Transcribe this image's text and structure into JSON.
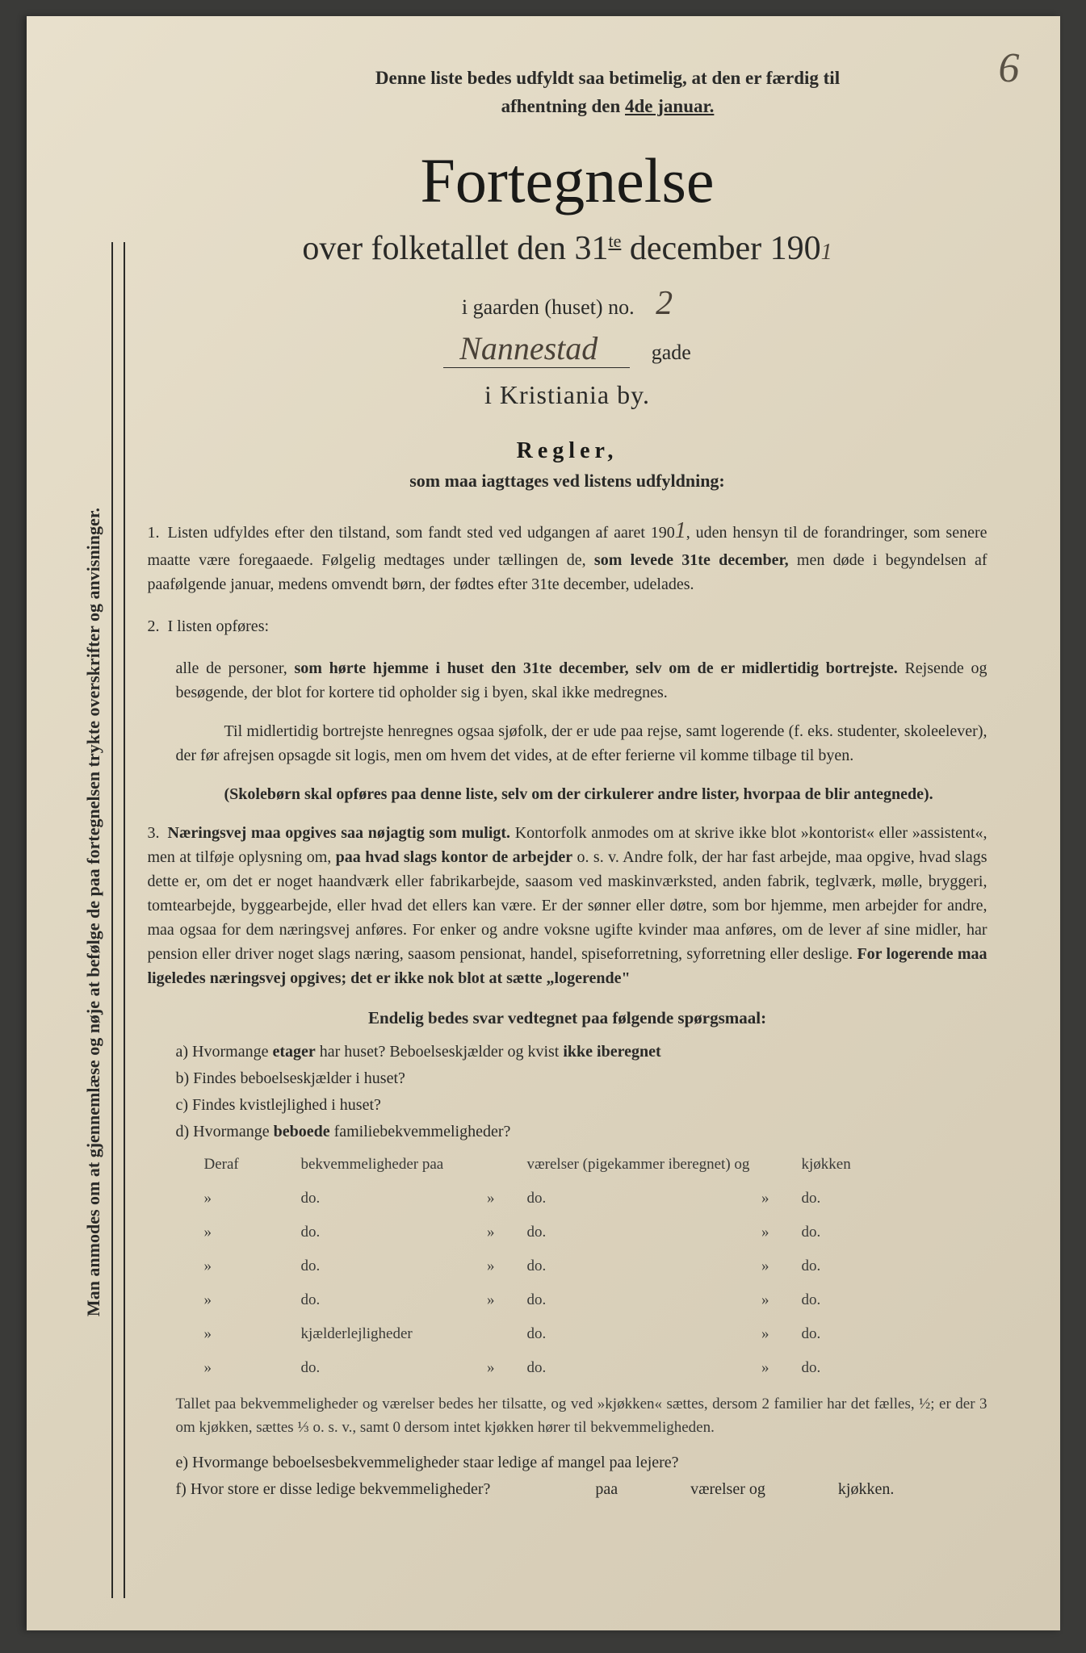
{
  "page_number": "6",
  "vertical_note": "Man anmodes om at gjennemlæse og nøje at befølge de paa fortegnelsen trykte overskrifter og anvisninger.",
  "header_note_line1": "Denne liste bedes udfyldt saa betimelig, at den er færdig til",
  "header_note_line2_prefix": "afhentning den ",
  "header_note_date": "4de januar.",
  "title": "Fortegnelse",
  "subtitle_prefix": "over folketallet den 31",
  "subtitle_sup": "te",
  "subtitle_suffix": " december 190",
  "subtitle_year_hand": "1",
  "gaarden_text": "i gaarden (huset) no.",
  "gaarden_no": "2",
  "street_hand": "Nannestad",
  "gade_text": "gade",
  "city_text": "i Kristiania by.",
  "regler_heading": "Regler,",
  "regler_sub": "som maa iagttages ved listens udfyldning:",
  "rule1": "Listen udfyldes efter den tilstand, som fandt sted ved udgangen af aaret 190",
  "rule1_year": "1",
  "rule1_cont": ", uden hensyn til de forandringer, som senere maatte være foregaaede. Følgelig medtages under tællingen de, ",
  "rule1_bold": "som levede 31te december,",
  "rule1_end": " men døde i begyndelsen af paafølgende januar, medens omvendt børn, der fødtes efter 31te december, udelades.",
  "rule2_intro": "I listen opføres:",
  "rule2_text": "alle de personer, ",
  "rule2_bold": "som hørte hjemme i huset den 31te december, selv om de er midlertidig bortrejste.",
  "rule2_end": " Rejsende og besøgende, der blot for kortere tid opholder sig i byen, skal ikke medregnes.",
  "rule2_para2": "Til midlertidig bortrejste henregnes ogsaa sjøfolk, der er ude paa rejse, samt logerende (f. eks. studenter, skoleelever), der før afrejsen opsagde sit logis, men om hvem det vides, at de efter ferierne vil komme tilbage til byen.",
  "rule2_bold2": "(Skolebørn skal opføres paa denne liste, selv om der cirkulerer andre lister, hvorpaa de blir antegnede).",
  "rule3_bold": "Næringsvej maa opgives saa nøjagtig som muligt.",
  "rule3_text": " Kontorfolk anmodes om at skrive ikke blot »kontorist« eller »assistent«, men at tilføje oplysning om, ",
  "rule3_bold2": "paa hvad slags kontor de arbejder",
  "rule3_text2": " o. s. v. Andre folk, der har fast arbejde, maa opgive, hvad slags dette er, om det er noget haandværk eller fabrikarbejde, saasom ved maskinværksted, anden fabrik, teglværk, mølle, bryggeri, tomtearbejde, byggearbejde, eller hvad det ellers kan være. Er der sønner eller døtre, som bor hjemme, men arbejder for andre, maa ogsaa for dem næringsvej anføres. For enker og andre voksne ugifte kvinder maa anføres, om de lever af sine midler, har pension eller driver noget slags næring, saasom pensionat, handel, spiseforretning, syforretning eller deslige. ",
  "rule3_bold3": "For logerende maa ligeledes næringsvej opgives; det er ikke nok blot at sætte „logerende\"",
  "endelig_heading": "Endelig bedes svar vedtegnet paa følgende spørgsmaal:",
  "qa": "a) Hvormange ",
  "qa_bold": "etager",
  "qa_end": " har huset? Beboelseskjælder og kvist ",
  "qa_bold2": "ikke iberegnet",
  "qb": "b) Findes beboelseskjælder i huset?",
  "qc": "c) Findes kvistlejlighed i huset?",
  "qd": "d) Hvormange ",
  "qd_bold": "beboede",
  "qd_end": " familiebekvemmeligheder?",
  "table_header": {
    "c1": "Deraf",
    "c2": "bekvemmeligheder paa",
    "c3": "værelser (pigekammer iberegnet) og",
    "c4": "kjøkken"
  },
  "table_rows": [
    {
      "c1": "»",
      "c2": "do.",
      "c2b": "»",
      "c3": "do.",
      "c3b": "»",
      "c4": "do."
    },
    {
      "c1": "»",
      "c2": "do.",
      "c2b": "»",
      "c3": "do.",
      "c3b": "»",
      "c4": "do."
    },
    {
      "c1": "»",
      "c2": "do.",
      "c2b": "»",
      "c3": "do.",
      "c3b": "»",
      "c4": "do."
    },
    {
      "c1": "»",
      "c2": "do.",
      "c2b": "»",
      "c3": "do.",
      "c3b": "»",
      "c4": "do."
    },
    {
      "c1": "»",
      "c2": "kjælderlejligheder",
      "c2b": "",
      "c3": "do.",
      "c3b": "»",
      "c4": "do."
    },
    {
      "c1": "»",
      "c2": "do.",
      "c2b": "»",
      "c3": "do.",
      "c3b": "»",
      "c4": "do."
    }
  ],
  "footer_text": "Tallet paa bekvemmeligheder og værelser bedes her tilsatte, og ved »kjøkken« sættes, dersom 2 familier har det fælles, ½; er der 3 om kjøkken, sættes ⅓ o. s. v., samt 0 dersom intet kjøkken hører til bekvemmeligheden.",
  "qe": "e) Hvormange beboelsesbekvemmeligheder staar ledige af mangel paa lejere?",
  "qf": "f) Hvor store er disse ledige bekvemmeligheder?",
  "qf_mid": "paa",
  "qf_mid2": "værelser og",
  "qf_end": "kjøkken.",
  "colors": {
    "page_bg": "#ddd4be",
    "text": "#2a2a28",
    "title": "#1a1a18",
    "handwritten": "#4a4238"
  }
}
